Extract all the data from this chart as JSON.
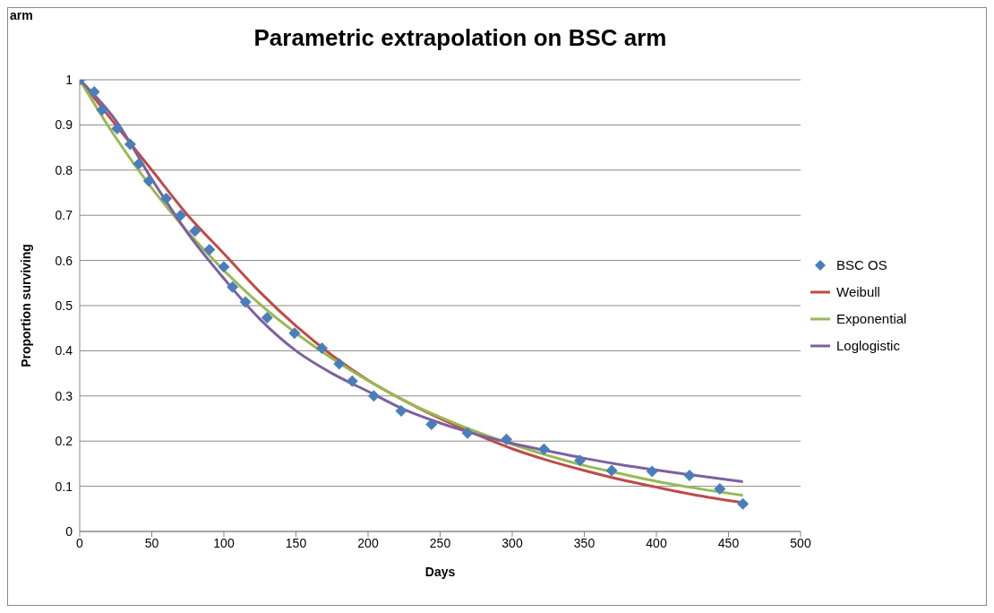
{
  "chart_data": {
    "type": "line",
    "title": "Parametric extrapolation on BSC arm",
    "xlabel": "Days",
    "ylabel": "Proportion surviving",
    "annotations": [
      "arm"
    ],
    "xlim": [
      0,
      500
    ],
    "xticks": [
      0,
      50,
      100,
      150,
      200,
      250,
      300,
      350,
      400,
      450,
      500
    ],
    "ylim": [
      0,
      1
    ],
    "yticks": [
      0,
      0.1,
      0.2,
      0.3,
      0.4,
      0.5,
      0.6,
      0.7,
      0.8,
      0.9,
      1
    ],
    "grid": "y",
    "legend": "right",
    "series": [
      {
        "name": "BSC OS",
        "type": "scatter",
        "marker": "diamond",
        "color": "#4a7ebb",
        "x": [
          0,
          10,
          15.5,
          26,
          35,
          41,
          48,
          60,
          70,
          80,
          90,
          100,
          106,
          115,
          130,
          149,
          168,
          180,
          189,
          204,
          223,
          244,
          269,
          296,
          322,
          347,
          369,
          397,
          423,
          444,
          460
        ],
        "values": [
          1,
          0.973,
          0.933,
          0.892,
          0.857,
          0.814,
          0.776,
          0.737,
          0.7,
          0.665,
          0.624,
          0.586,
          0.541,
          0.508,
          0.473,
          0.439,
          0.406,
          0.371,
          0.333,
          0.3,
          0.267,
          0.237,
          0.218,
          0.204,
          0.182,
          0.157,
          0.135,
          0.133,
          0.124,
          0.094,
          0.061
        ]
      },
      {
        "name": "Weibull",
        "marker": "none",
        "color": "#be4b48",
        "x": [
          0,
          25,
          50,
          75,
          100,
          125,
          150,
          175,
          200,
          225,
          250,
          275,
          300,
          325,
          350,
          375,
          400,
          425,
          460
        ],
        "values": [
          1,
          0.9,
          0.8,
          0.7,
          0.615,
          0.53,
          0.455,
          0.39,
          0.335,
          0.29,
          0.25,
          0.215,
          0.183,
          0.157,
          0.135,
          0.115,
          0.098,
          0.082,
          0.064
        ]
      },
      {
        "name": "Exponential",
        "marker": "none",
        "color": "#98b954",
        "x": [
          0,
          25,
          50,
          75,
          100,
          125,
          150,
          175,
          200,
          225,
          250,
          275,
          300,
          325,
          350,
          375,
          400,
          425,
          460
        ],
        "values": [
          1,
          0.872,
          0.76,
          0.663,
          0.578,
          0.503,
          0.439,
          0.383,
          0.334,
          0.29,
          0.253,
          0.221,
          0.193,
          0.168,
          0.146,
          0.128,
          0.111,
          0.097,
          0.08
        ]
      },
      {
        "name": "Loglogistic",
        "marker": "none",
        "color": "#7d60a0",
        "x": [
          0,
          25,
          50,
          75,
          100,
          125,
          150,
          175,
          200,
          225,
          250,
          275,
          300,
          325,
          350,
          375,
          400,
          425,
          460
        ],
        "values": [
          1,
          0.91,
          0.78,
          0.66,
          0.56,
          0.47,
          0.4,
          0.35,
          0.31,
          0.27,
          0.24,
          0.215,
          0.195,
          0.178,
          0.162,
          0.148,
          0.136,
          0.125,
          0.11
        ]
      }
    ]
  }
}
